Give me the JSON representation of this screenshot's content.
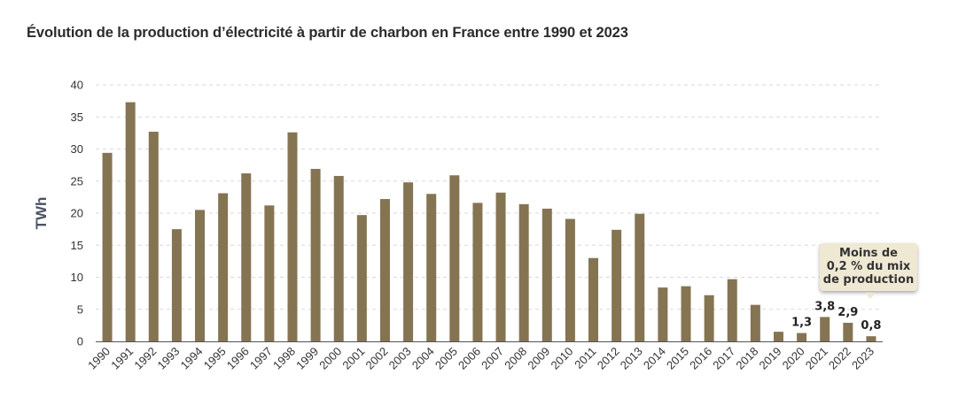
{
  "chart_data": {
    "type": "bar",
    "title": "Évolution de la production d’électricité à partir de charbon en France entre 1990 et 2023",
    "ylabel": "TWh",
    "xlabel": "",
    "ylim": [
      0,
      40
    ],
    "yticks": [
      "0",
      "5",
      "10",
      "15",
      "20",
      "25",
      "30",
      "35",
      "40"
    ],
    "categories": [
      "1990",
      "1991",
      "1992",
      "1993",
      "1994",
      "1995",
      "1996",
      "1997",
      "1998",
      "1999",
      "2000",
      "2001",
      "2002",
      "2003",
      "2004",
      "2005",
      "2006",
      "2007",
      "2008",
      "2009",
      "2010",
      "2011",
      "2012",
      "2013",
      "2014",
      "2015",
      "2016",
      "2017",
      "2018",
      "2019",
      "2020",
      "2021",
      "2022",
      "2023"
    ],
    "values": [
      29.4,
      37.3,
      32.7,
      17.5,
      20.5,
      23.1,
      26.2,
      21.2,
      32.6,
      26.9,
      25.8,
      19.7,
      22.2,
      24.8,
      23.0,
      25.9,
      21.6,
      23.2,
      21.4,
      20.7,
      19.1,
      13.0,
      17.4,
      19.9,
      8.4,
      8.6,
      7.2,
      9.7,
      5.7,
      1.5,
      1.3,
      3.8,
      2.9,
      0.8
    ],
    "data_labels": [
      {
        "category": "2020",
        "text": "1,3"
      },
      {
        "category": "2021",
        "text": "3,8"
      },
      {
        "category": "2022",
        "text": "2,9"
      },
      {
        "category": "2023",
        "text": "0,8"
      }
    ],
    "annotation": {
      "lines": [
        "Moins de",
        "0,2 % du mix",
        "de production"
      ],
      "target": "2023"
    },
    "bar_color": "#857452",
    "grid": true
  }
}
